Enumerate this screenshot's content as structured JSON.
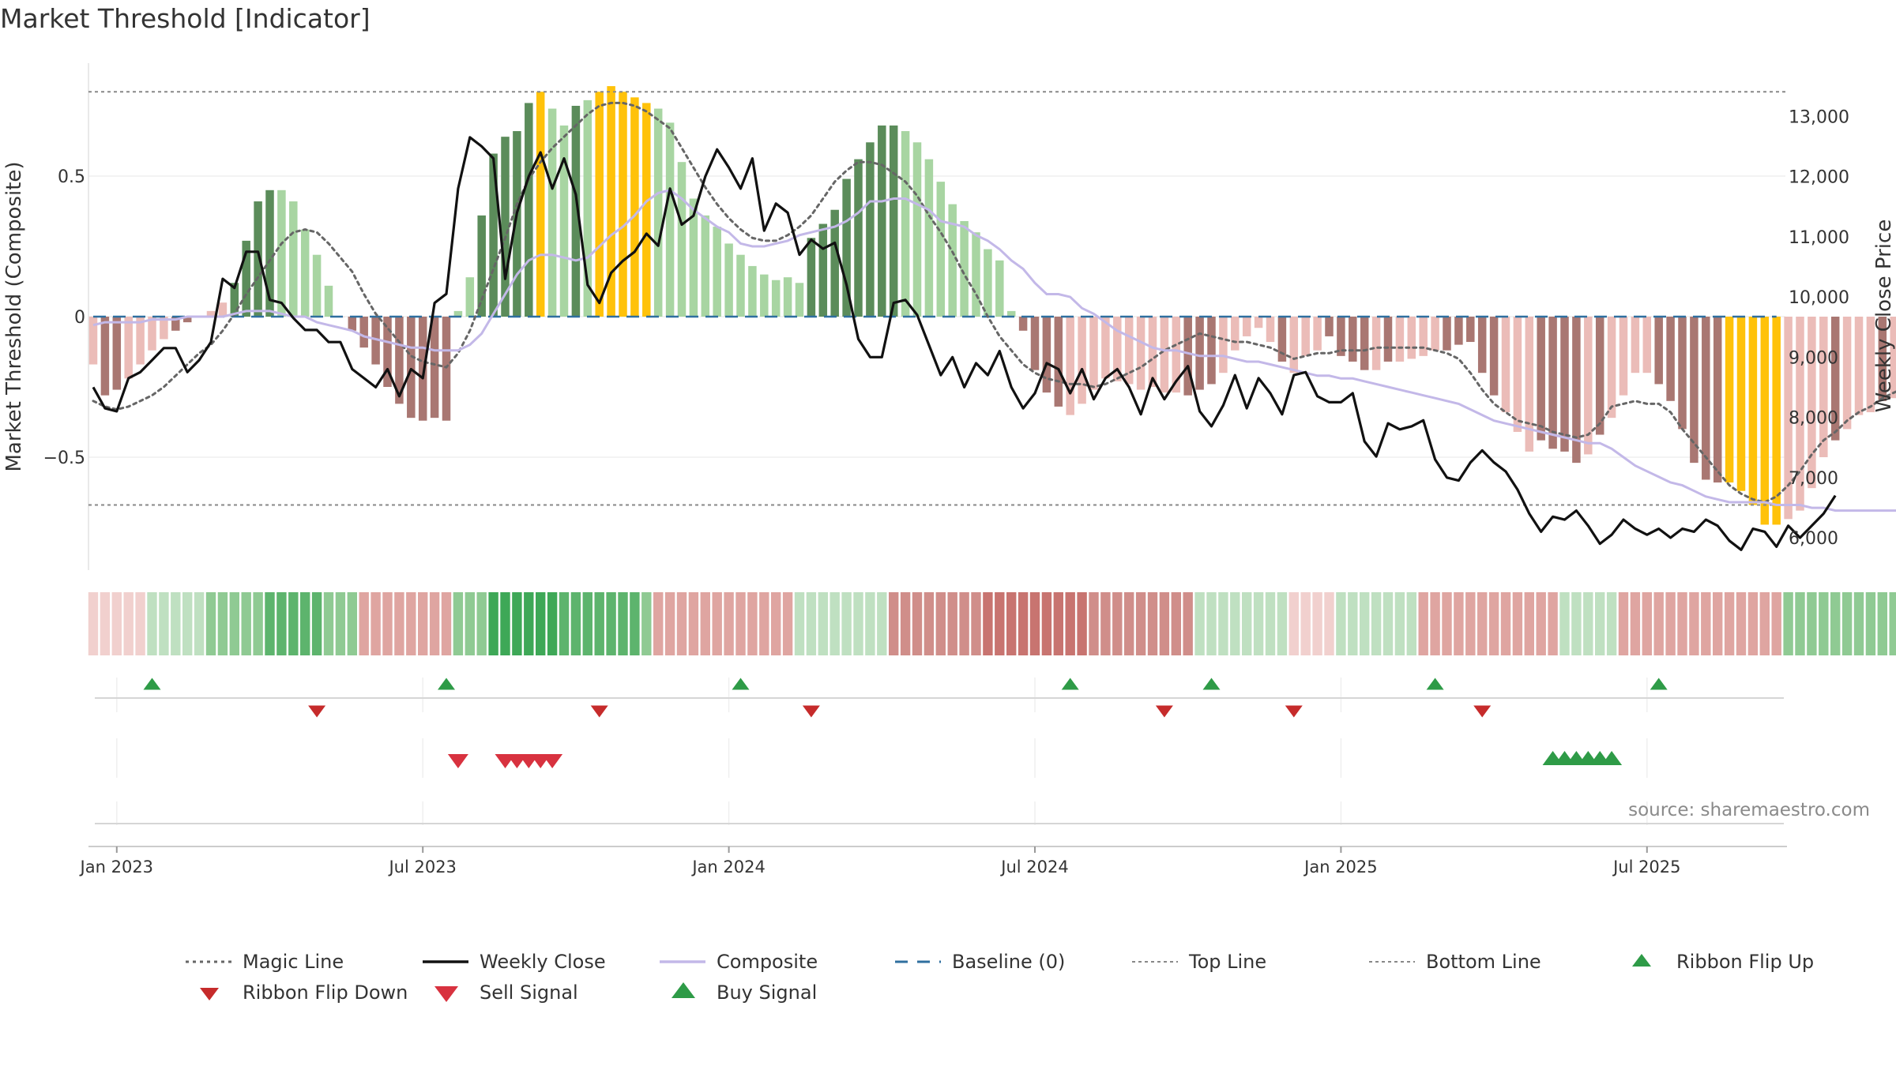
{
  "title": "Market Threshold [Indicator]",
  "source_text": "source: sharemaestro.com",
  "colors": {
    "bar_dark_green": "#5b8c5a",
    "bar_light_green": "#a8d5a2",
    "bar_dark_red": "#a97772",
    "bar_light_red": "#ebbcb8",
    "bar_yellow": "#ffc20a",
    "weekly_close": "#111111",
    "composite": "#c3b8e8",
    "magic_line": "#666666",
    "baseline": "#2f6f9f",
    "threshold_lines": "#888888",
    "buy": "#2e9b47",
    "sell": "#d8323f",
    "flip_down": "#c62b2b"
  },
  "chart_data": {
    "type": "bar",
    "y_left_label": "Market Threshold (Composite)",
    "y_right_label": "Weekly Close Price",
    "y_left_ticks": [
      "0.5",
      "0",
      "−0.5"
    ],
    "y_left_tick_values": [
      0.5,
      0,
      -0.5
    ],
    "y_right_ticks": [
      "13,000",
      "12,000",
      "11,000",
      "10,000",
      "9,000",
      "8,000",
      "7,000",
      "6,000"
    ],
    "y_right_tick_values": [
      13000,
      12000,
      11000,
      10000,
      9000,
      8000,
      7000,
      6000
    ],
    "y_left_range": [
      -0.9,
      0.9
    ],
    "y_right_range": [
      5700,
      13600
    ],
    "top_line": 0.8,
    "bottom_line": -0.67,
    "x_ticks": [
      "Jan 2023",
      "Jul 2023",
      "Jan 2024",
      "Jul 2024",
      "Jan 2025",
      "Jul 2025"
    ],
    "x_tick_weeks": [
      2,
      28,
      54,
      80,
      106,
      132
    ],
    "weeks": 144,
    "composite_bars": [
      -0.17,
      -0.28,
      -0.26,
      -0.22,
      -0.17,
      -0.12,
      -0.08,
      -0.05,
      -0.02,
      0.0,
      0.02,
      0.05,
      0.12,
      0.27,
      0.41,
      0.45,
      0.45,
      0.41,
      0.31,
      0.22,
      0.11,
      0.0,
      -0.05,
      -0.11,
      -0.17,
      -0.25,
      -0.31,
      -0.36,
      -0.37,
      -0.36,
      -0.37,
      0.02,
      0.14,
      0.36,
      0.58,
      0.64,
      0.66,
      0.76,
      0.8,
      0.74,
      0.68,
      0.75,
      0.77,
      0.8,
      0.82,
      0.8,
      0.78,
      0.76,
      0.74,
      0.69,
      0.55,
      0.42,
      0.36,
      0.32,
      0.26,
      0.22,
      0.18,
      0.15,
      0.13,
      0.14,
      0.12,
      0.28,
      0.33,
      0.38,
      0.49,
      0.56,
      0.62,
      0.68,
      0.68,
      0.66,
      0.62,
      0.56,
      0.48,
      0.4,
      0.34,
      0.3,
      0.24,
      0.2,
      0.02,
      -0.05,
      -0.19,
      -0.27,
      -0.32,
      -0.35,
      -0.31,
      -0.26,
      -0.22,
      -0.23,
      -0.24,
      -0.26,
      -0.25,
      -0.27,
      -0.27,
      -0.28,
      -0.26,
      -0.24,
      -0.2,
      -0.12,
      -0.07,
      -0.04,
      -0.09,
      -0.16,
      -0.2,
      -0.14,
      -0.12,
      -0.07,
      -0.14,
      -0.16,
      -0.19,
      -0.19,
      -0.16,
      -0.16,
      -0.15,
      -0.14,
      -0.12,
      -0.12,
      -0.1,
      -0.09,
      -0.2,
      -0.28,
      -0.34,
      -0.41,
      -0.48,
      -0.44,
      -0.47,
      -0.48,
      -0.52,
      -0.49,
      -0.42,
      -0.36,
      -0.28,
      -0.2,
      -0.2,
      -0.24,
      -0.3,
      -0.4,
      -0.52,
      -0.58,
      -0.59,
      -0.59,
      -0.62,
      -0.67,
      -0.74,
      -0.74,
      -0.72,
      -0.69,
      -0.61,
      -0.5,
      -0.44,
      -0.4,
      -0.35,
      -0.34,
      -0.3,
      -0.29,
      -0.27,
      -0.3,
      -0.28,
      -0.26,
      -0.2,
      -0.17
    ],
    "bar_colors": [
      "lr",
      "dr",
      "dr",
      "lr",
      "lr",
      "lr",
      "lr",
      "dr",
      "dr",
      "lr",
      "lr",
      "lr",
      "dg",
      "dg",
      "dg",
      "dg",
      "lg",
      "lg",
      "lg",
      "lg",
      "lg",
      "lr",
      "dr",
      "dr",
      "dr",
      "dr",
      "dr",
      "dr",
      "dr",
      "dr",
      "dr",
      "lg",
      "lg",
      "dg",
      "dg",
      "dg",
      "dg",
      "dg",
      "y",
      "lg",
      "lg",
      "dg",
      "lg",
      "y",
      "y",
      "y",
      "y",
      "y",
      "lg",
      "lg",
      "lg",
      "lg",
      "lg",
      "lg",
      "lg",
      "lg",
      "lg",
      "lg",
      "lg",
      "lg",
      "lg",
      "dg",
      "dg",
      "dg",
      "dg",
      "dg",
      "dg",
      "dg",
      "dg",
      "lg",
      "lg",
      "lg",
      "lg",
      "lg",
      "lg",
      "lg",
      "lg",
      "lg",
      "lg",
      "dr",
      "dr",
      "dr",
      "dr",
      "lr",
      "lr",
      "lr",
      "lr",
      "lr",
      "lr",
      "lr",
      "lr",
      "lr",
      "lr",
      "dr",
      "dr",
      "dr",
      "lr",
      "lr",
      "lr",
      "lr",
      "lr",
      "dr",
      "lr",
      "lr",
      "lr",
      "dr",
      "dr",
      "dr",
      "dr",
      "lr",
      "dr",
      "lr",
      "lr",
      "lr",
      "lr",
      "dr",
      "dr",
      "dr",
      "dr",
      "dr",
      "lr",
      "lr",
      "lr",
      "dr",
      "dr",
      "dr",
      "dr",
      "lr",
      "dr",
      "lr",
      "lr",
      "lr",
      "lr",
      "dr",
      "dr",
      "dr",
      "dr",
      "dr",
      "dr",
      "y",
      "y",
      "y",
      "y",
      "y",
      "lr",
      "lr",
      "lr",
      "lr",
      "dr",
      "lr",
      "lr",
      "lr",
      "dr",
      "lr",
      "lr",
      "dr",
      "lr"
    ],
    "weekly_close": [
      8500,
      8150,
      8100,
      8650,
      8750,
      8950,
      9150,
      9150,
      8750,
      8950,
      9250,
      10300,
      10150,
      10750,
      10750,
      9950,
      9900,
      9650,
      9450,
      9450,
      9250,
      9250,
      8800,
      8650,
      8500,
      8800,
      8350,
      8800,
      8650,
      9900,
      10050,
      11800,
      12650,
      12500,
      12300,
      10300,
      11400,
      12000,
      12400,
      11800,
      12300,
      11700,
      10200,
      9900,
      10400,
      10600,
      10750,
      11050,
      10850,
      11800,
      11200,
      11350,
      12000,
      12450,
      12150,
      11800,
      12300,
      11100,
      11550,
      11400,
      10700,
      10950,
      10800,
      10900,
      10200,
      9300,
      9000,
      9000,
      9900,
      9950,
      9700,
      9200,
      8700,
      9000,
      8500,
      8900,
      8700,
      9100,
      8500,
      8150,
      8400,
      8900,
      8800,
      8400,
      8800,
      8300,
      8650,
      8800,
      8500,
      8050,
      8650,
      8300,
      8600,
      8850,
      8100,
      7850,
      8200,
      8700,
      8150,
      8650,
      8400,
      8050,
      8700,
      8750,
      8350,
      8250,
      8250,
      8400,
      7600,
      7350,
      7900,
      7800,
      7850,
      7950,
      7300,
      7000,
      6950,
      7250,
      7450,
      7250,
      7100,
      6800,
      6400,
      6100,
      6350,
      6300,
      6450,
      6200,
      5900,
      6050,
      6300,
      6150,
      6050,
      6150,
      6000,
      6150,
      6100,
      6300,
      6200,
      5950,
      5800,
      6150,
      6100,
      5850,
      6200,
      6000,
      6200,
      6400,
      6700
    ],
    "composite_line": [
      -0.03,
      -0.02,
      -0.02,
      -0.02,
      -0.02,
      -0.01,
      -0.01,
      -0.01,
      0.0,
      0.0,
      0.0,
      0.0,
      0.01,
      0.02,
      0.02,
      0.02,
      0.01,
      0.0,
      0.0,
      -0.02,
      -0.03,
      -0.04,
      -0.05,
      -0.07,
      -0.08,
      -0.09,
      -0.1,
      -0.11,
      -0.11,
      -0.12,
      -0.12,
      -0.12,
      -0.1,
      -0.06,
      0.01,
      0.08,
      0.15,
      0.2,
      0.22,
      0.22,
      0.21,
      0.2,
      0.21,
      0.25,
      0.29,
      0.32,
      0.36,
      0.41,
      0.44,
      0.45,
      0.42,
      0.38,
      0.35,
      0.32,
      0.3,
      0.26,
      0.25,
      0.25,
      0.26,
      0.27,
      0.29,
      0.3,
      0.31,
      0.32,
      0.34,
      0.37,
      0.41,
      0.41,
      0.42,
      0.42,
      0.4,
      0.38,
      0.34,
      0.33,
      0.32,
      0.29,
      0.27,
      0.24,
      0.2,
      0.17,
      0.12,
      0.08,
      0.08,
      0.07,
      0.03,
      0.01,
      -0.02,
      -0.05,
      -0.07,
      -0.09,
      -0.11,
      -0.12,
      -0.12,
      -0.13,
      -0.14,
      -0.14,
      -0.14,
      -0.15,
      -0.16,
      -0.16,
      -0.17,
      -0.18,
      -0.19,
      -0.2,
      -0.21,
      -0.21,
      -0.22,
      -0.22,
      -0.23,
      -0.24,
      -0.25,
      -0.26,
      -0.27,
      -0.28,
      -0.29,
      -0.3,
      -0.31,
      -0.33,
      -0.35,
      -0.37,
      -0.38,
      -0.39,
      -0.4,
      -0.41,
      -0.42,
      -0.43,
      -0.44,
      -0.45,
      -0.45,
      -0.47,
      -0.5,
      -0.53,
      -0.55,
      -0.57,
      -0.59,
      -0.6,
      -0.62,
      -0.64,
      -0.65,
      -0.66,
      -0.66,
      -0.66,
      -0.66,
      -0.67,
      -0.67,
      -0.67,
      -0.68,
      -0.68,
      -0.69,
      -0.69,
      -0.69,
      -0.69,
      -0.69,
      -0.69,
      -0.69,
      -0.69,
      -0.68,
      -0.68
    ],
    "magic_line": [
      -0.3,
      -0.32,
      -0.33,
      -0.32,
      -0.3,
      -0.28,
      -0.25,
      -0.21,
      -0.17,
      -0.13,
      -0.1,
      -0.05,
      0.01,
      0.08,
      0.14,
      0.2,
      0.26,
      0.3,
      0.31,
      0.3,
      0.26,
      0.21,
      0.16,
      0.08,
      0.01,
      -0.04,
      -0.09,
      -0.14,
      -0.16,
      -0.17,
      -0.18,
      -0.13,
      -0.05,
      0.06,
      0.17,
      0.28,
      0.4,
      0.49,
      0.55,
      0.6,
      0.64,
      0.68,
      0.72,
      0.75,
      0.76,
      0.76,
      0.75,
      0.73,
      0.7,
      0.67,
      0.6,
      0.53,
      0.46,
      0.4,
      0.35,
      0.31,
      0.28,
      0.27,
      0.27,
      0.29,
      0.32,
      0.36,
      0.42,
      0.48,
      0.52,
      0.55,
      0.55,
      0.54,
      0.51,
      0.48,
      0.43,
      0.36,
      0.3,
      0.23,
      0.15,
      0.08,
      0.0,
      -0.07,
      -0.12,
      -0.17,
      -0.2,
      -0.22,
      -0.23,
      -0.24,
      -0.24,
      -0.25,
      -0.24,
      -0.22,
      -0.2,
      -0.18,
      -0.15,
      -0.12,
      -0.1,
      -0.08,
      -0.06,
      -0.07,
      -0.08,
      -0.09,
      -0.09,
      -0.1,
      -0.11,
      -0.13,
      -0.15,
      -0.14,
      -0.13,
      -0.13,
      -0.12,
      -0.12,
      -0.12,
      -0.11,
      -0.11,
      -0.11,
      -0.11,
      -0.11,
      -0.12,
      -0.13,
      -0.15,
      -0.2,
      -0.26,
      -0.31,
      -0.34,
      -0.37,
      -0.38,
      -0.39,
      -0.41,
      -0.42,
      -0.43,
      -0.42,
      -0.38,
      -0.32,
      -0.31,
      -0.3,
      -0.31,
      -0.31,
      -0.34,
      -0.4,
      -0.45,
      -0.5,
      -0.55,
      -0.6,
      -0.63,
      -0.65,
      -0.66,
      -0.64,
      -0.6,
      -0.55,
      -0.49,
      -0.44,
      -0.41,
      -0.37,
      -0.34,
      -0.32,
      -0.29,
      -0.27,
      -0.25,
      -0.23
    ],
    "ribbon_levels": [
      -1,
      -1,
      -1,
      -1,
      -1,
      1,
      1,
      1,
      1,
      1,
      2,
      2,
      2,
      2,
      2,
      3,
      3,
      3,
      3,
      3,
      2,
      2,
      2,
      -2,
      -2,
      -2,
      -2,
      -2,
      -2,
      -2,
      -2,
      2,
      2,
      2,
      4,
      4,
      4,
      4,
      4,
      4,
      3,
      3,
      3,
      3,
      3,
      3,
      3,
      2,
      -2,
      -2,
      -2,
      -2,
      -2,
      -2,
      -2,
      -2,
      -2,
      -2,
      -2,
      -2,
      1,
      1,
      1,
      1,
      1,
      1,
      1,
      1,
      -3,
      -3,
      -3,
      -3,
      -3,
      -3,
      -3,
      -3,
      -4,
      -4,
      -4,
      -4,
      -4,
      -4,
      -4,
      -4,
      -4,
      -3,
      -3,
      -3,
      -3,
      -3,
      -3,
      -3,
      -3,
      -3,
      1,
      1,
      1,
      1,
      1,
      1,
      1,
      1,
      -1,
      -1,
      -1,
      -1,
      1,
      1,
      1,
      1,
      1,
      1,
      1,
      -2,
      -2,
      -2,
      -2,
      -2,
      -2,
      -2,
      -2,
      -2,
      -2,
      -2,
      -2,
      1,
      1,
      1,
      1,
      1,
      -2,
      -2,
      -2,
      -2,
      -2,
      -2,
      -2,
      -2,
      -2,
      -2,
      -2,
      -2,
      -2,
      -2,
      2,
      2,
      2,
      2,
      2,
      2,
      2,
      2,
      2,
      2,
      2,
      2
    ],
    "ribbon_flip_up_weeks": [
      5,
      30,
      55,
      83,
      95,
      114,
      133
    ],
    "ribbon_flip_down_weeks": [
      19,
      43,
      61,
      91,
      102,
      118
    ],
    "sell_signal_weeks": [
      31,
      35,
      36,
      37,
      38,
      39
    ],
    "buy_signal_weeks": [
      124,
      125,
      126,
      127,
      128,
      129
    ],
    "legend": [
      {
        "label": "Magic Line",
        "type": "dotted",
        "color": "#666666"
      },
      {
        "label": "Weekly Close",
        "type": "solid",
        "color": "#111111"
      },
      {
        "label": "Composite",
        "type": "solid",
        "color": "#c3b8e8"
      },
      {
        "label": "Baseline (0)",
        "type": "dashed",
        "color": "#2f6f9f"
      },
      {
        "label": "Top Line",
        "type": "dotted-light",
        "color": "#888888"
      },
      {
        "label": "Bottom Line",
        "type": "dotted-light",
        "color": "#888888"
      },
      {
        "label": "Ribbon Flip Up",
        "type": "tri-up",
        "color": "#2e9b47"
      },
      {
        "label": "Ribbon Flip Down",
        "type": "tri-down-small",
        "color": "#c62b2b"
      },
      {
        "label": "Sell Signal",
        "type": "tri-down",
        "color": "#d8323f"
      },
      {
        "label": "Buy Signal",
        "type": "tri-up-big",
        "color": "#2e9b47"
      }
    ]
  }
}
